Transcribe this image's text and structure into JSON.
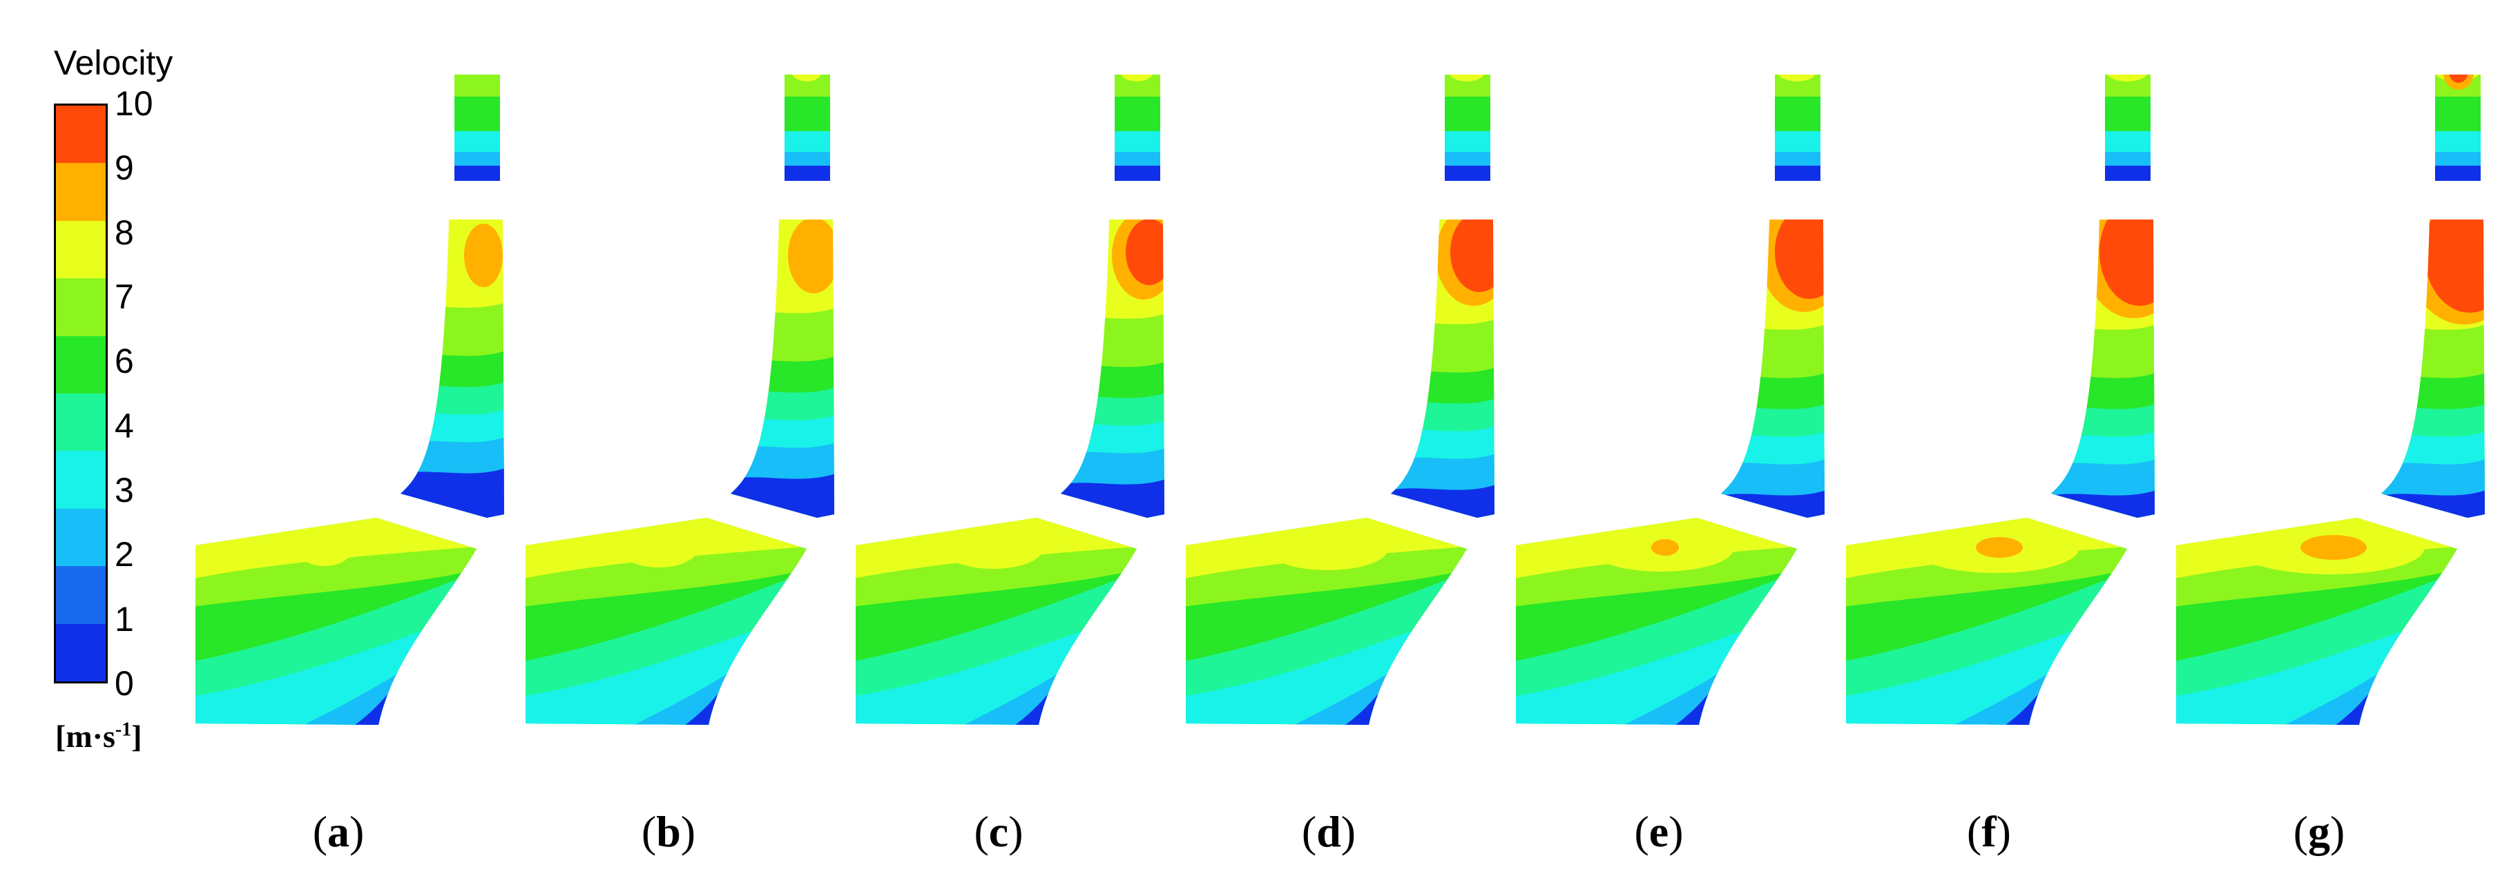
{
  "legend": {
    "title": "Velocity",
    "unit_main": "[m·s",
    "unit_sup": "-1",
    "unit_end": "]",
    "ticks": [
      "10",
      "9",
      "8",
      "7",
      "6",
      "4",
      "3",
      "2",
      "1",
      "0"
    ],
    "band_colors": [
      "#ff4a0a",
      "#ffb000",
      "#e8ff1e",
      "#8cf51e",
      "#28e628",
      "#1ef598",
      "#19f2e8",
      "#18bef8",
      "#1a6af0",
      "#0f30e8"
    ]
  },
  "panels": [
    {
      "label": "a",
      "max_region": "inlet-top-yellow"
    },
    {
      "label": "b",
      "max_region": "outlet-yellow"
    },
    {
      "label": "c",
      "max_region": "outlet-orange"
    },
    {
      "label": "d",
      "max_region": "outlet-red"
    },
    {
      "label": "e",
      "max_region": "outlet-red"
    },
    {
      "label": "f",
      "max_region": "outlet-red"
    },
    {
      "label": "g",
      "max_region": "outlet-red"
    }
  ]
}
